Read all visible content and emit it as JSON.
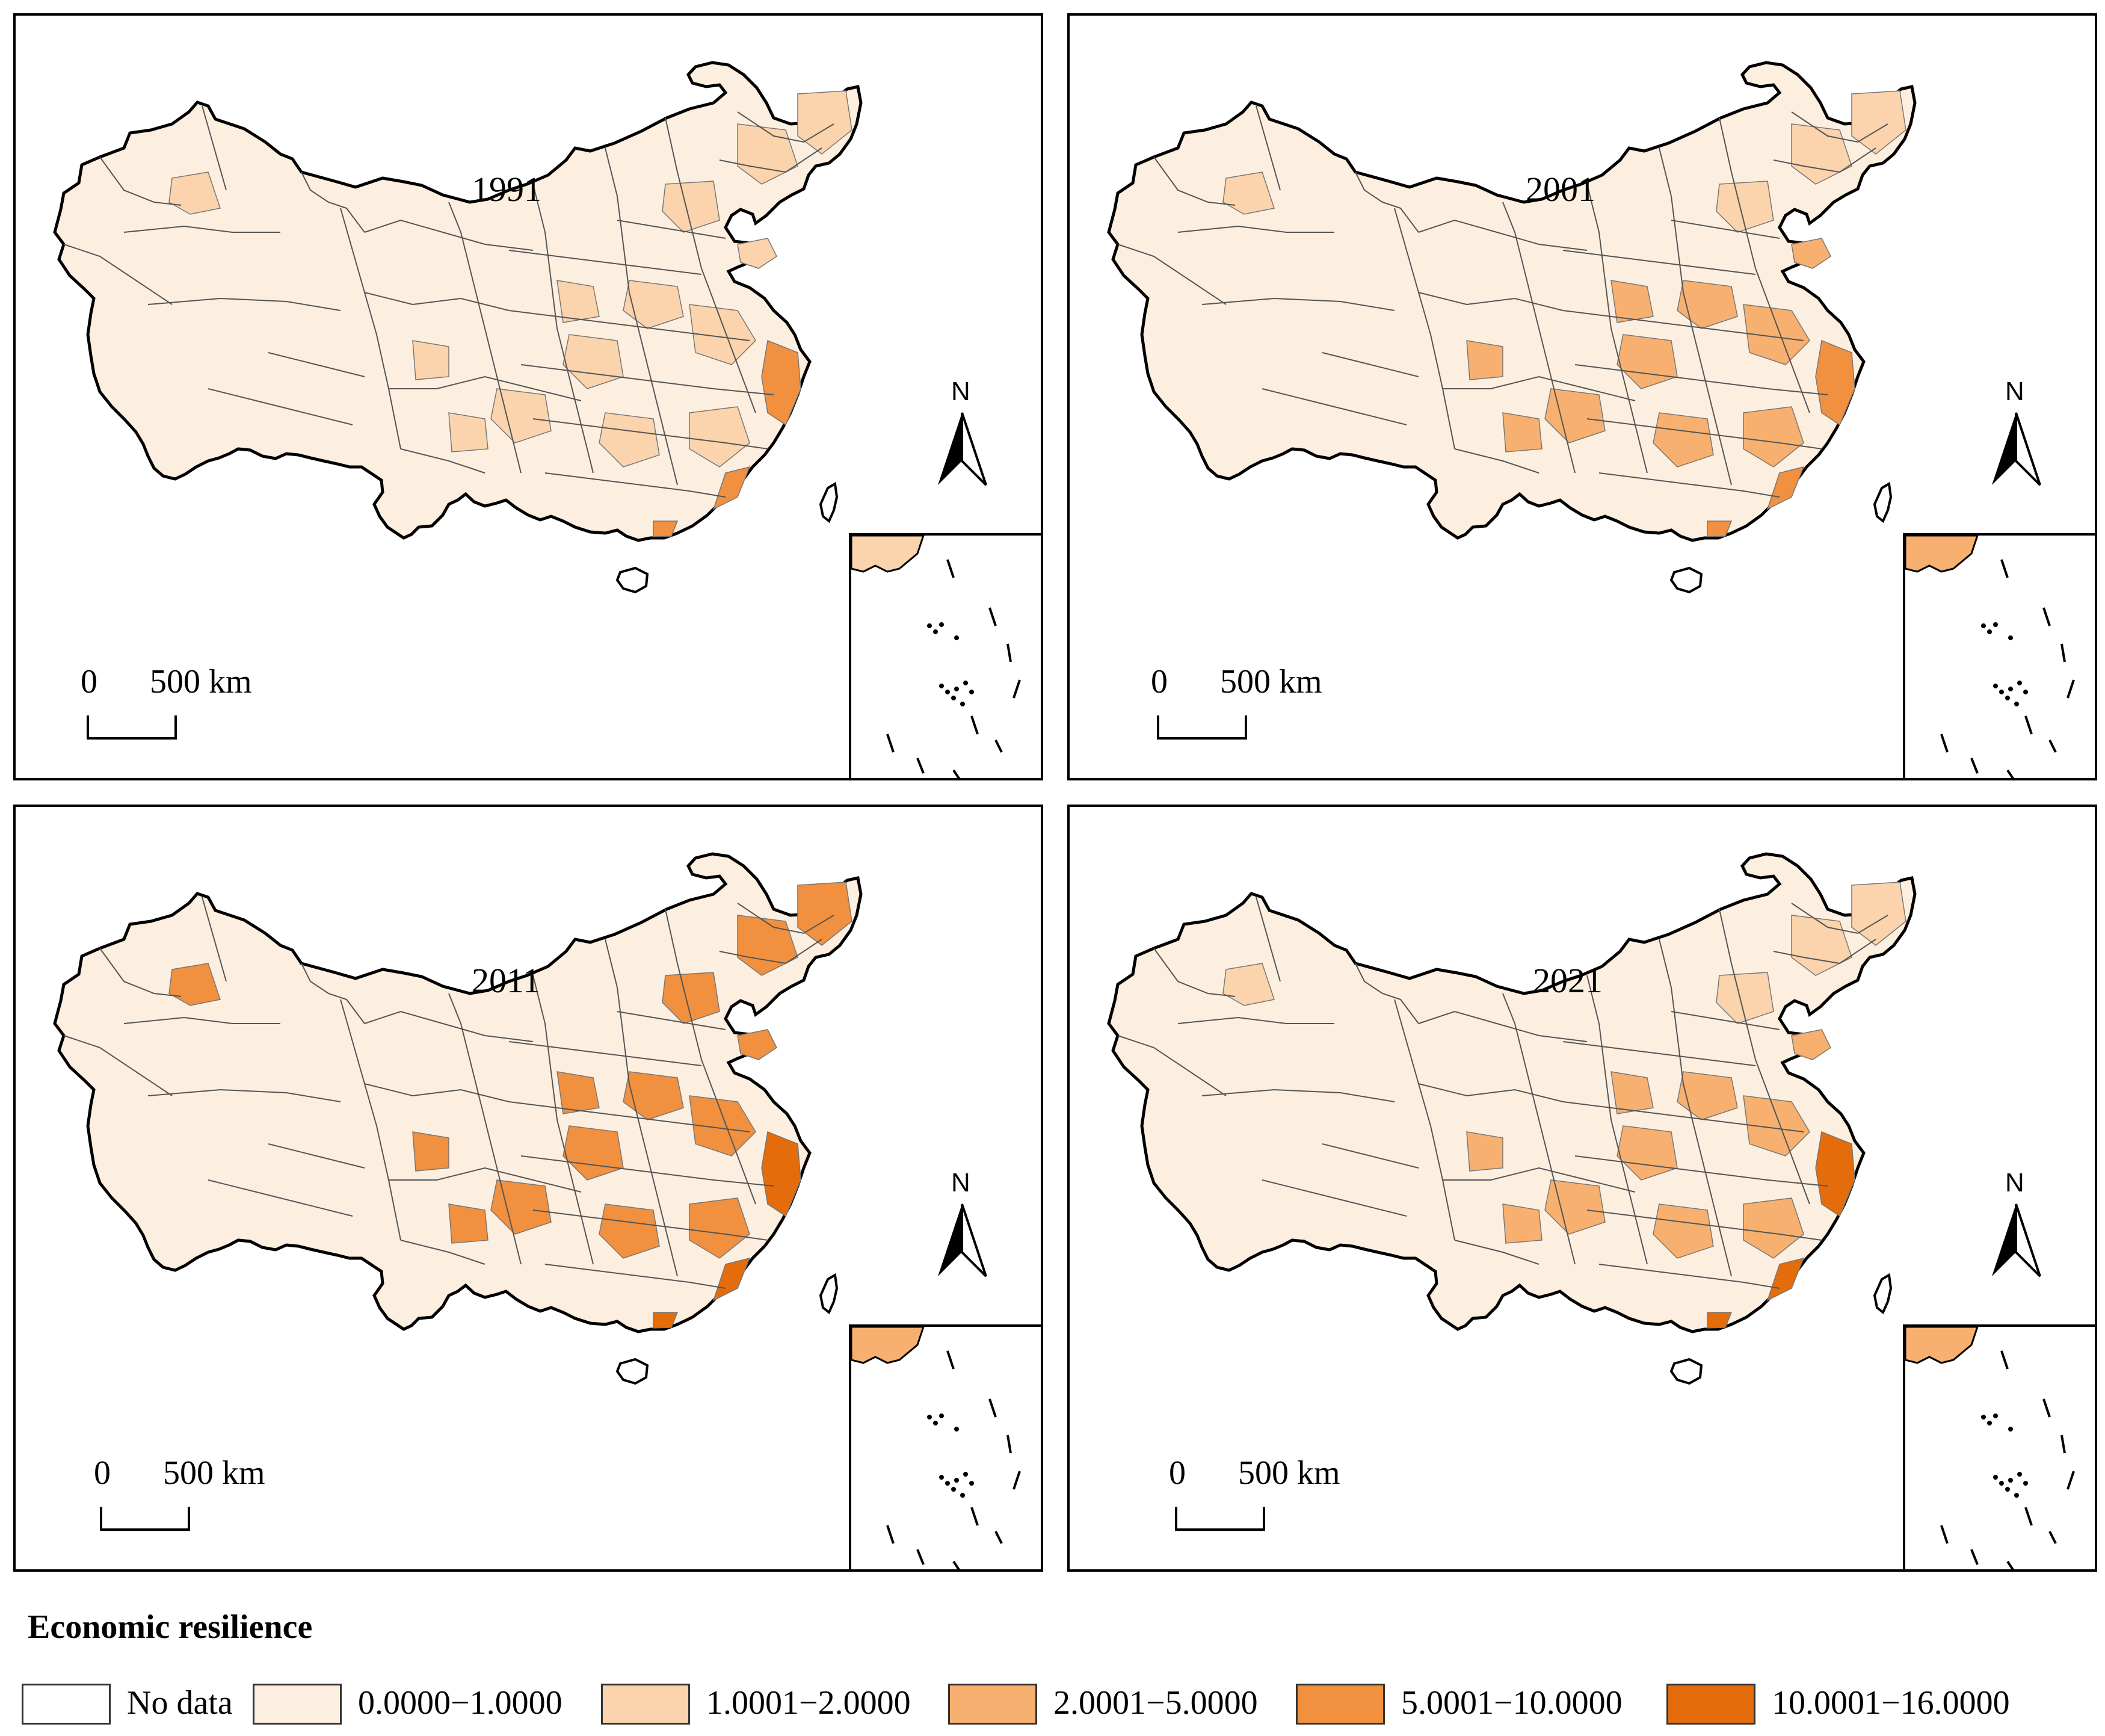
{
  "panels": [
    {
      "year": "1991",
      "scale_zero": "0",
      "scale_label": "500 km",
      "north": "N"
    },
    {
      "year": "2001",
      "scale_zero": "0",
      "scale_label": "500 km",
      "north": "N"
    },
    {
      "year": "2011",
      "scale_zero": "0",
      "scale_label": "500 km",
      "north": "N"
    },
    {
      "year": "2021",
      "scale_zero": "0",
      "scale_label": "500 km",
      "north": "N"
    }
  ],
  "legend": {
    "title": "Economic resilience",
    "items": [
      {
        "label": "No data",
        "color": "#ffffff"
      },
      {
        "label": "0.0000−1.0000",
        "color": "#fdefe0"
      },
      {
        "label": "1.0001−2.0000",
        "color": "#fbd3ac"
      },
      {
        "label": "2.0001−5.0000",
        "color": "#f7b06f"
      },
      {
        "label": "5.0001−10.0000",
        "color": "#f1903f"
      },
      {
        "label": "10.0001−16.0000",
        "color": "#e46c0a"
      }
    ]
  },
  "map_shading": {
    "1991": {
      "east_level": 1,
      "north_level": 1,
      "coast_level": 3,
      "central_level": 1
    },
    "2001": {
      "east_level": 2,
      "north_level": 1,
      "coast_level": 3,
      "central_level": 2
    },
    "2011": {
      "east_level": 3,
      "north_level": 3,
      "coast_level": 4,
      "central_level": 3
    },
    "2021": {
      "east_level": 2,
      "north_level": 1,
      "coast_level": 4,
      "central_level": 2
    }
  }
}
